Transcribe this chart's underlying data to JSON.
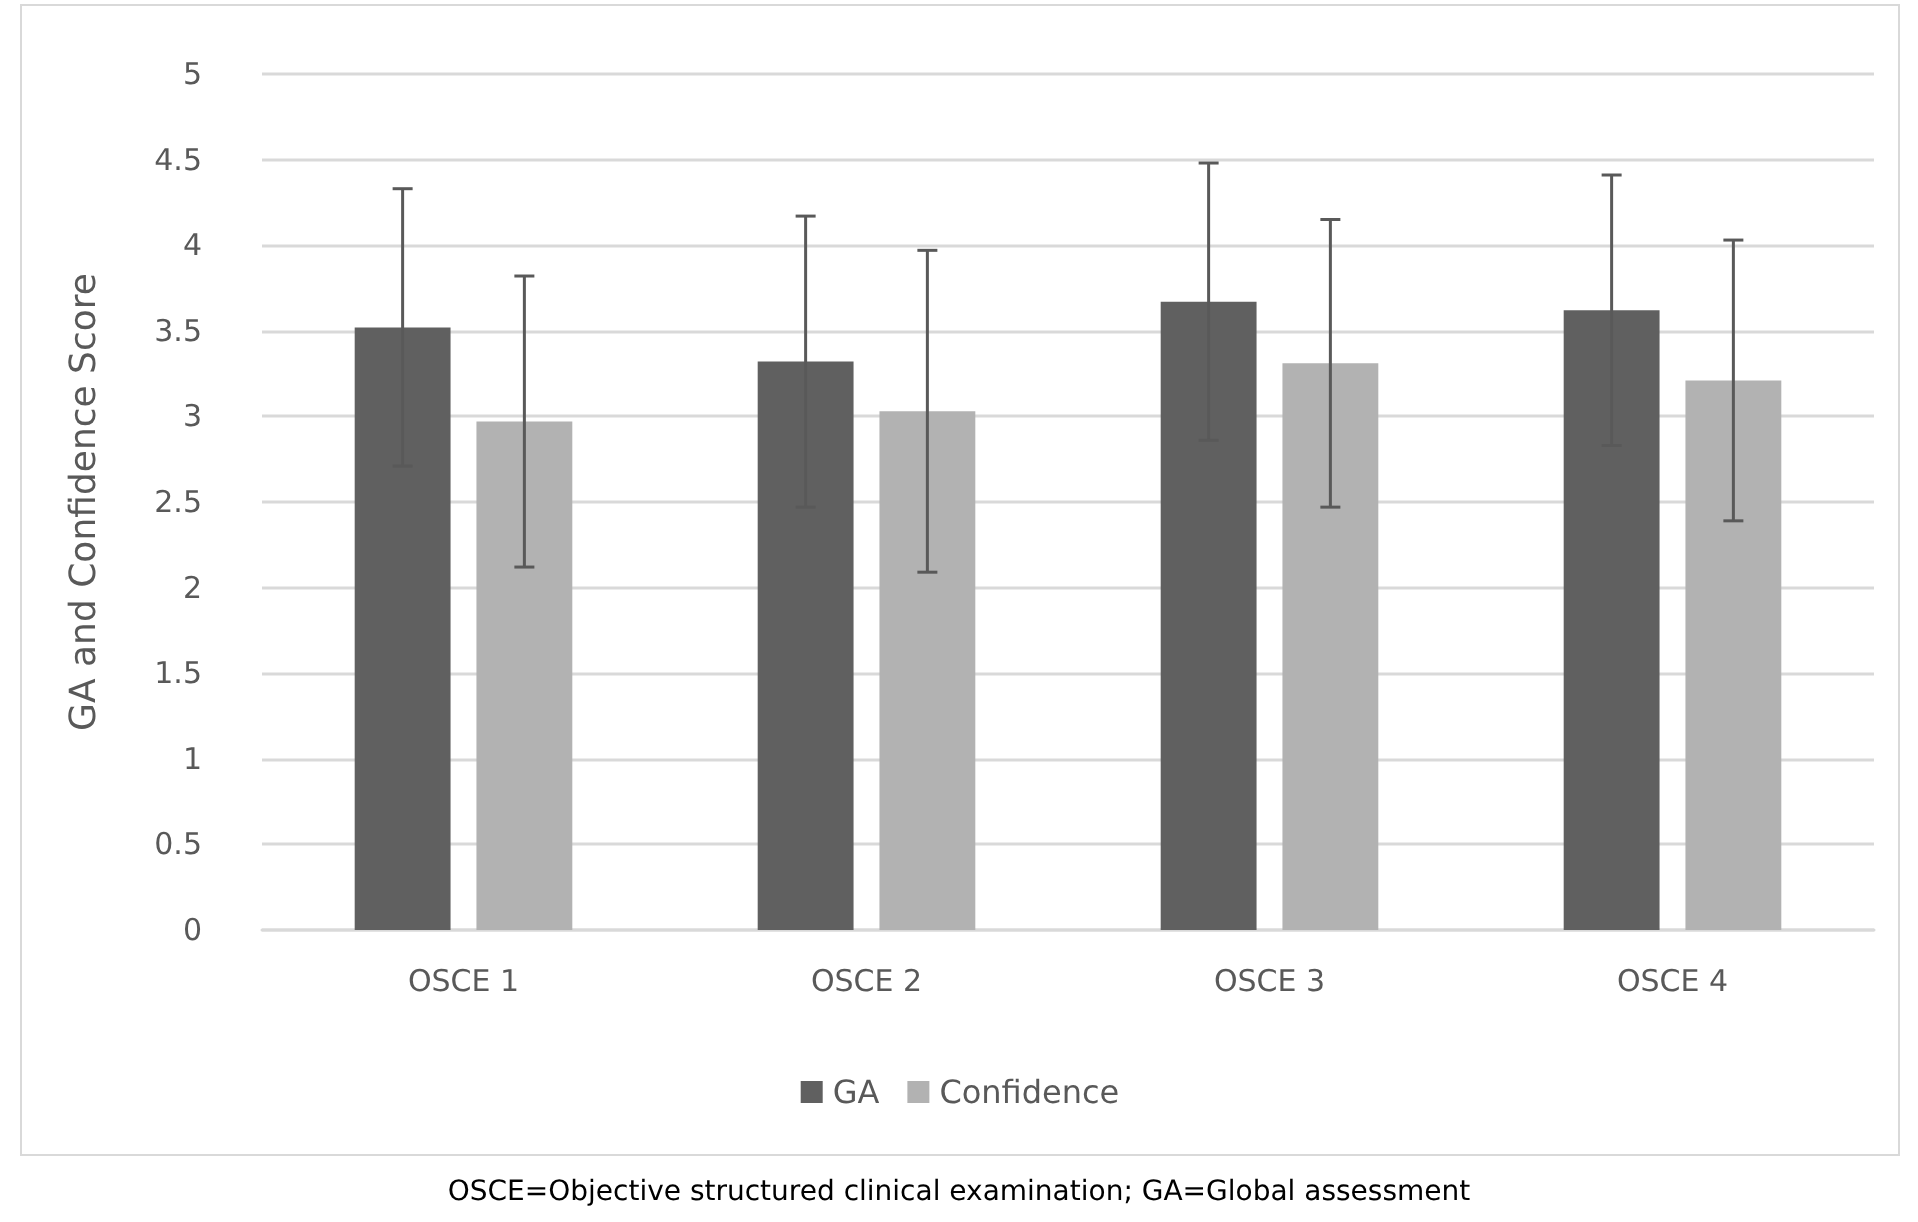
{
  "chart_data": {
    "type": "bar",
    "ylabel": "GA and Confidence Score",
    "categories": [
      "OSCE 1",
      "OSCE 2",
      "OSCE 3",
      "OSCE 4"
    ],
    "series": [
      {
        "name": "GA",
        "color": "#606060",
        "values": [
          3.52,
          3.32,
          3.67,
          3.62
        ],
        "errors": [
          0.81,
          0.85,
          0.81,
          0.79
        ]
      },
      {
        "name": "Confidence",
        "color": "#b2b2b2",
        "values": [
          2.97,
          3.03,
          3.31,
          3.21
        ],
        "errors": [
          0.85,
          0.94,
          0.84,
          0.82
        ]
      }
    ],
    "ylim": [
      0,
      5
    ],
    "yticks": [
      0,
      0.5,
      1,
      1.5,
      2,
      2.5,
      3,
      3.5,
      4,
      4.5,
      5
    ],
    "grid": "y",
    "legend": "bottom",
    "annotations": [
      "OSCE=Objective structured clinical examination; GA=Global assessment"
    ]
  }
}
